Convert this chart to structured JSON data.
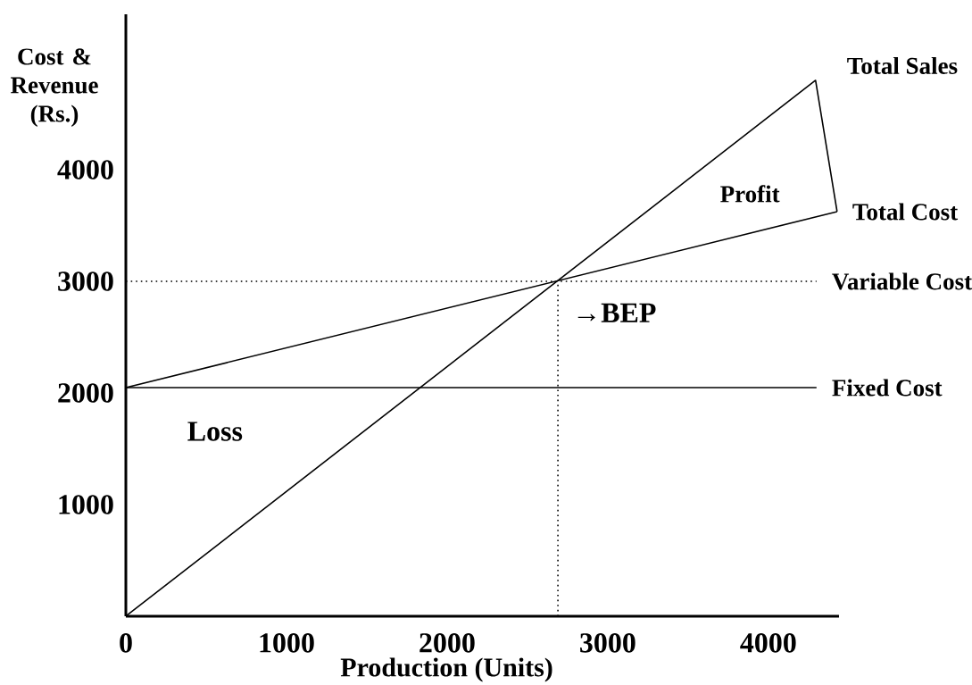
{
  "chart_data": {
    "type": "line",
    "xlabel": "Production (Units)",
    "ylabel": "Cost & Revenue (Rs.)",
    "xlim": [
      0,
      4440
    ],
    "ylim": [
      0,
      5392
    ],
    "xticks": [
      0,
      1000,
      2000,
      3000,
      4000
    ],
    "yticks": [
      1000,
      2000,
      3000,
      4000
    ],
    "marker": "none",
    "series": [
      {
        "name": "Total Sales",
        "color": "#000000",
        "x": [
          0,
          4294,
          4428
        ],
        "values": [
          0,
          4800,
          3624
        ]
      },
      {
        "name": "Total Cost",
        "color": "#000000",
        "x": [
          0,
          4428
        ],
        "values": [
          2048,
          3624
        ]
      },
      {
        "name": "Variable Cost",
        "color": "#000000",
        "x": [
          0,
          4300
        ],
        "values": [
          3000,
          3000
        ],
        "line_style": "dotted"
      },
      {
        "name": "Fixed Cost",
        "color": "#000000",
        "x": [
          0,
          4300
        ],
        "values": [
          2048,
          2048
        ]
      },
      {
        "color": "#000000",
        "x": [
          2690,
          2690
        ],
        "values": [
          0,
          3000
        ],
        "line_style": "dotted"
      }
    ],
    "annotations": [
      "Profit",
      "Loss",
      "→BEP"
    ]
  }
}
